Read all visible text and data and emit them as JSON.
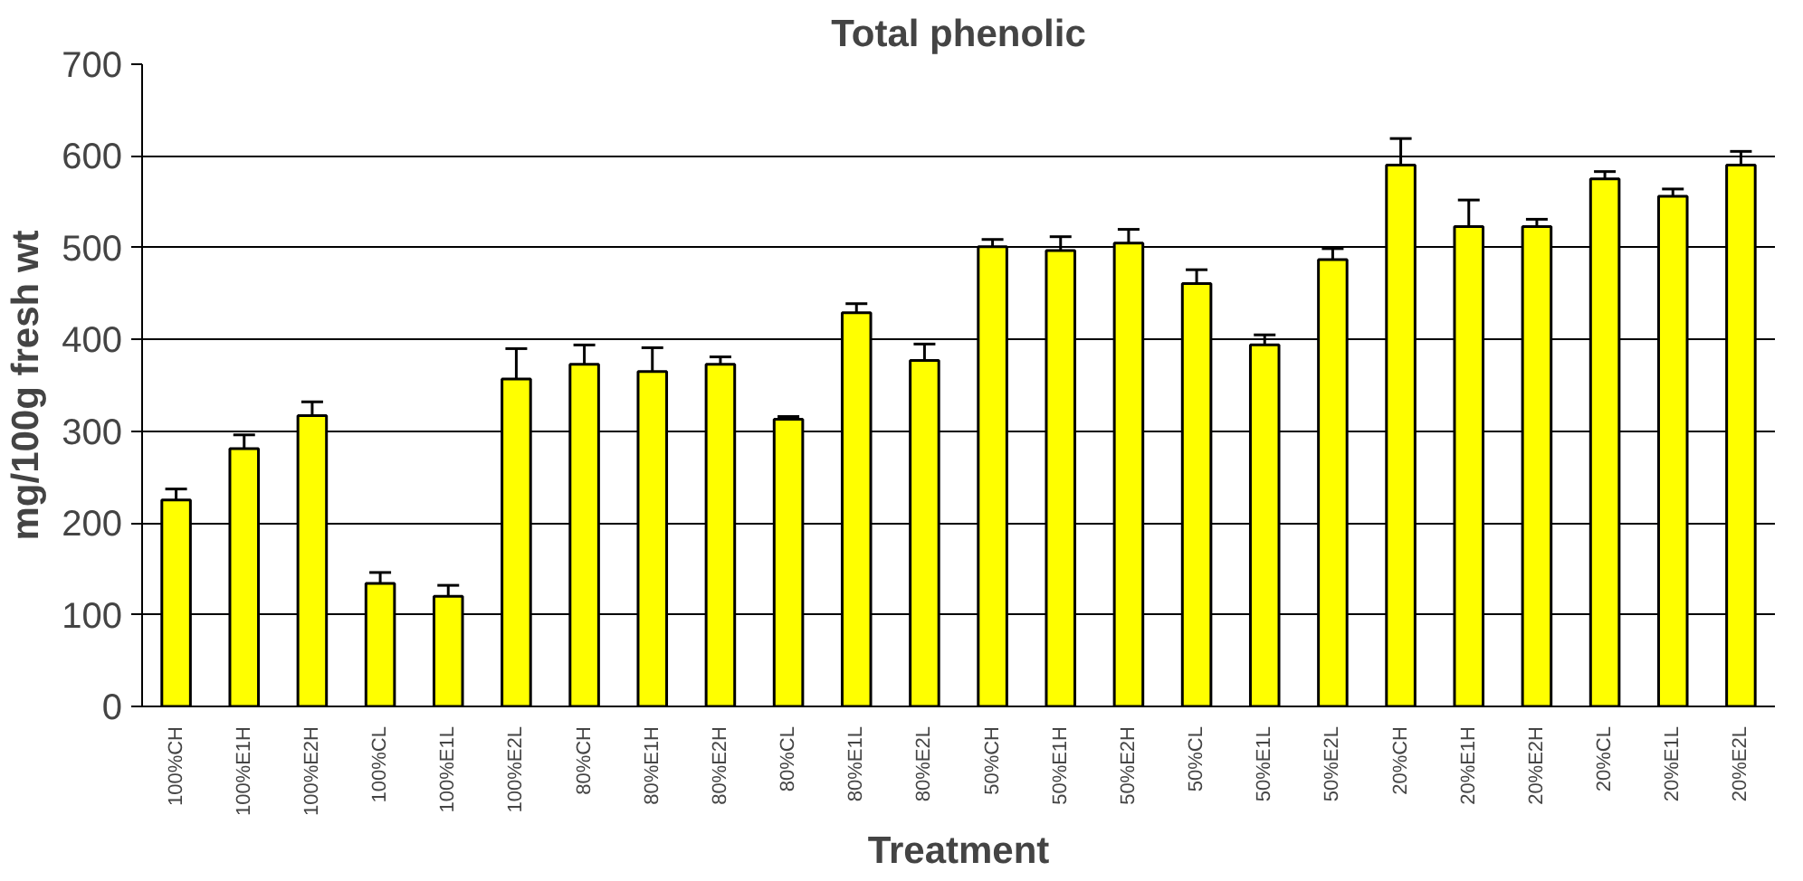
{
  "chart_data": {
    "type": "bar",
    "title": "Total phenolic",
    "xlabel": "Treatment",
    "ylabel": "mg/100g fresh wt",
    "categories": [
      "100%CH",
      "100%E1H",
      "100%E2H",
      "100%CL",
      "100%E1L",
      "100%E2L",
      "80%CH",
      "80%E1H",
      "80%E2H",
      "80%CL",
      "80%E1L",
      "80%E2L",
      "50%CH",
      "50%E1H",
      "50%E2H",
      "50%CL",
      "50%E1L",
      "50%E2L",
      "20%CH",
      "20%E1H",
      "20%E2H",
      "20%CL",
      "20%E1L",
      "20%E2L"
    ],
    "values": [
      225,
      281,
      317,
      134,
      120,
      357,
      373,
      365,
      373,
      313,
      429,
      377,
      501,
      497,
      505,
      461,
      394,
      487,
      590,
      523,
      523,
      575,
      556,
      590
    ],
    "errors": [
      12,
      15,
      15,
      12,
      12,
      33,
      21,
      26,
      8,
      3,
      10,
      18,
      8,
      15,
      15,
      15,
      11,
      12,
      29,
      29,
      8,
      8,
      8,
      15
    ],
    "color": "#ffff00",
    "ylim": [
      0,
      700
    ],
    "yticks": [
      0,
      100,
      200,
      300,
      400,
      500,
      600,
      700
    ],
    "grid": "y"
  }
}
